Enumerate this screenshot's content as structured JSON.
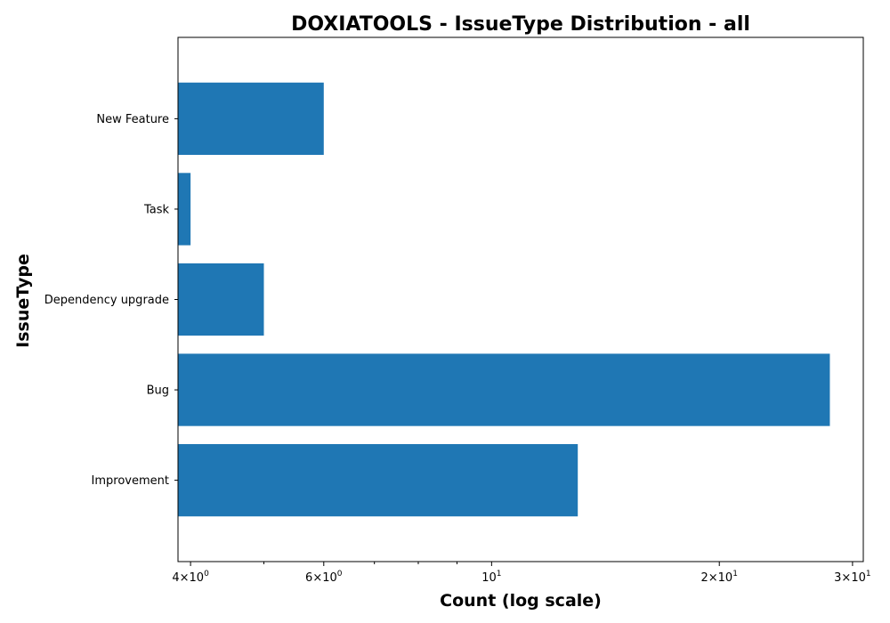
{
  "chart_data": {
    "type": "bar",
    "orientation": "horizontal",
    "title": "DOXIATOOLS - IssueType Distribution - all",
    "xlabel": "Count (log scale)",
    "ylabel": "IssueType",
    "x_scale": "log",
    "xlim": [
      3.85,
      31
    ],
    "categories": [
      "Improvement",
      "Bug",
      "Dependency upgrade",
      "Task",
      "New Feature"
    ],
    "values": [
      13,
      28,
      5,
      4,
      6
    ],
    "bar_color": "#1f77b4",
    "grid": false,
    "legend": "none",
    "x_ticks": [
      {
        "value": 4,
        "base": "4",
        "mult": "×",
        "ten": "10",
        "exp": "0"
      },
      {
        "value": 6,
        "base": "6",
        "mult": "×",
        "ten": "10",
        "exp": "0"
      },
      {
        "value": 10,
        "base": "",
        "mult": "",
        "ten": "10",
        "exp": "1"
      },
      {
        "value": 20,
        "base": "2",
        "mult": "×",
        "ten": "10",
        "exp": "1"
      },
      {
        "value": 30,
        "base": "3",
        "mult": "×",
        "ten": "10",
        "exp": "1"
      }
    ]
  }
}
